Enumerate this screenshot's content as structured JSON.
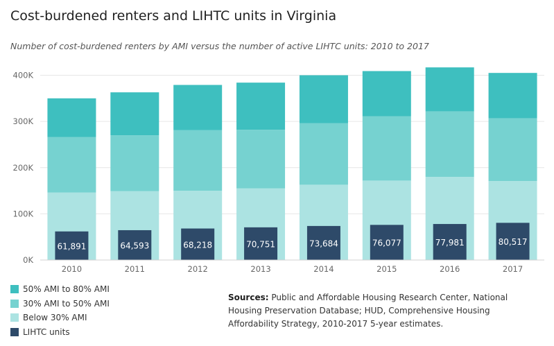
{
  "title": "Cost-burdened renters and LIHTC units in Virginia",
  "subtitle": "Number of cost-burdened renters by AMI versus the number of active LIHTC units: 2010 to 2017",
  "legend": {
    "items": [
      {
        "label": "50% AMI to 80% AMI",
        "color": "#3ebfbf"
      },
      {
        "label": "30% AMI to 50% AMI",
        "color": "#76d2d0"
      },
      {
        "label": "Below 30% AMI",
        "color": "#ace3e2"
      },
      {
        "label": "LIHTC units",
        "color": "#2e4a69"
      }
    ]
  },
  "sources": {
    "label": "Sources:",
    "text": "Public and Affordable Housing Research Center, National Housing Preservation Database; HUD, Comprehensive Housing Affordability Strategy, 2010-2017 5-year estimates."
  },
  "chart_data": {
    "type": "bar",
    "categories": [
      "2010",
      "2011",
      "2012",
      "2013",
      "2014",
      "2015",
      "2016",
      "2017"
    ],
    "series": [
      {
        "name": "Below 30% AMI",
        "values": [
          146000,
          149000,
          150000,
          155000,
          163000,
          172000,
          180000,
          171000
        ],
        "color": "#ace3e2"
      },
      {
        "name": "30% AMI to 50% AMI",
        "values": [
          120000,
          121000,
          131000,
          127000,
          133000,
          139000,
          142000,
          136000
        ],
        "color": "#76d2d0"
      },
      {
        "name": "50% AMI to 80% AMI",
        "values": [
          84000,
          93000,
          98000,
          102000,
          104000,
          98000,
          95000,
          98000
        ],
        "color": "#3ebfbf"
      },
      {
        "name": "LIHTC units",
        "values": [
          61891,
          64593,
          68218,
          70751,
          73684,
          76077,
          77981,
          80517
        ],
        "labels": [
          "61,891",
          "64,593",
          "68,218",
          "70,751",
          "73,684",
          "76,077",
          "77,981",
          "80,517"
        ],
        "color": "#2e4a69"
      }
    ],
    "stacked_series": [
      "Below 30% AMI",
      "30% AMI to 50% AMI",
      "50% AMI to 80% AMI"
    ],
    "overlay_series": "LIHTC units",
    "yticks": [
      0,
      100000,
      200000,
      300000,
      400000
    ],
    "ytick_labels": [
      "0K",
      "100K",
      "200K",
      "300K",
      "400K"
    ],
    "ylim": [
      0,
      420000
    ],
    "grid": true,
    "legend_position": "bottom-left"
  }
}
